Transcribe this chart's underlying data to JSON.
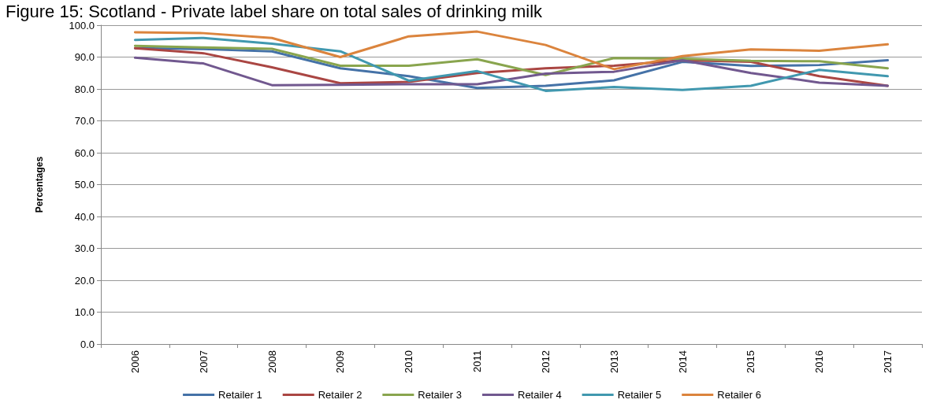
{
  "chart_data": {
    "type": "line",
    "title": "Figure 15: Scotland - Private label share on total sales of drinking milk",
    "ylabel": "Percentages",
    "categories": [
      "2006",
      "2007",
      "2008",
      "2009",
      "2010",
      "2011",
      "2012",
      "2013",
      "2014",
      "2015",
      "2016",
      "2017"
    ],
    "series": [
      {
        "name": "Retailer 1",
        "color": "#4572a7",
        "values": [
          92.8,
          92.5,
          91.8,
          86.5,
          84,
          80.3,
          81,
          82.7,
          88.5,
          87.2,
          87.5,
          89
        ]
      },
      {
        "name": "Retailer 2",
        "color": "#aa4643",
        "values": [
          92.8,
          91.2,
          86.8,
          81.8,
          82.2,
          85,
          86.5,
          87.3,
          89,
          88.5,
          84,
          81
        ]
      },
      {
        "name": "Retailer 3",
        "color": "#89a54e",
        "values": [
          93.5,
          93,
          92.6,
          87.3,
          87.3,
          89.3,
          84.4,
          89.7,
          89.5,
          88.8,
          88.7,
          86.5
        ]
      },
      {
        "name": "Retailer 4",
        "color": "#71588f",
        "values": [
          89.8,
          88,
          81.2,
          81.3,
          81.5,
          81.5,
          84.8,
          85.4,
          89,
          85,
          82,
          81
        ]
      },
      {
        "name": "Retailer 5",
        "color": "#4198af",
        "values": [
          95.4,
          96,
          94.2,
          91.8,
          82.6,
          85.6,
          79.4,
          80.6,
          79.7,
          81,
          86,
          84
        ]
      },
      {
        "name": "Retailer 6",
        "color": "#db843d",
        "values": [
          97.8,
          97.5,
          96,
          90,
          96.5,
          98,
          93.8,
          86.2,
          90.3,
          92.4,
          92,
          94
        ]
      }
    ],
    "ylim": [
      0,
      100
    ],
    "yticks": [
      {
        "value": 0,
        "label": "0.0"
      },
      {
        "value": 10,
        "label": "10.0"
      },
      {
        "value": 20,
        "label": "20.0"
      },
      {
        "value": 30,
        "label": "30.0"
      },
      {
        "value": 40,
        "label": "40.0"
      },
      {
        "value": 50,
        "label": "50.0"
      },
      {
        "value": 60,
        "label": "60.0"
      },
      {
        "value": 70,
        "label": "70.0"
      },
      {
        "value": 80,
        "label": "80.0"
      },
      {
        "value": 90,
        "label": "90.0"
      },
      {
        "value": 100,
        "label": "100.0"
      }
    ],
    "grid": "y",
    "legend": "bottom",
    "marker": "none",
    "line_style": "solid"
  }
}
